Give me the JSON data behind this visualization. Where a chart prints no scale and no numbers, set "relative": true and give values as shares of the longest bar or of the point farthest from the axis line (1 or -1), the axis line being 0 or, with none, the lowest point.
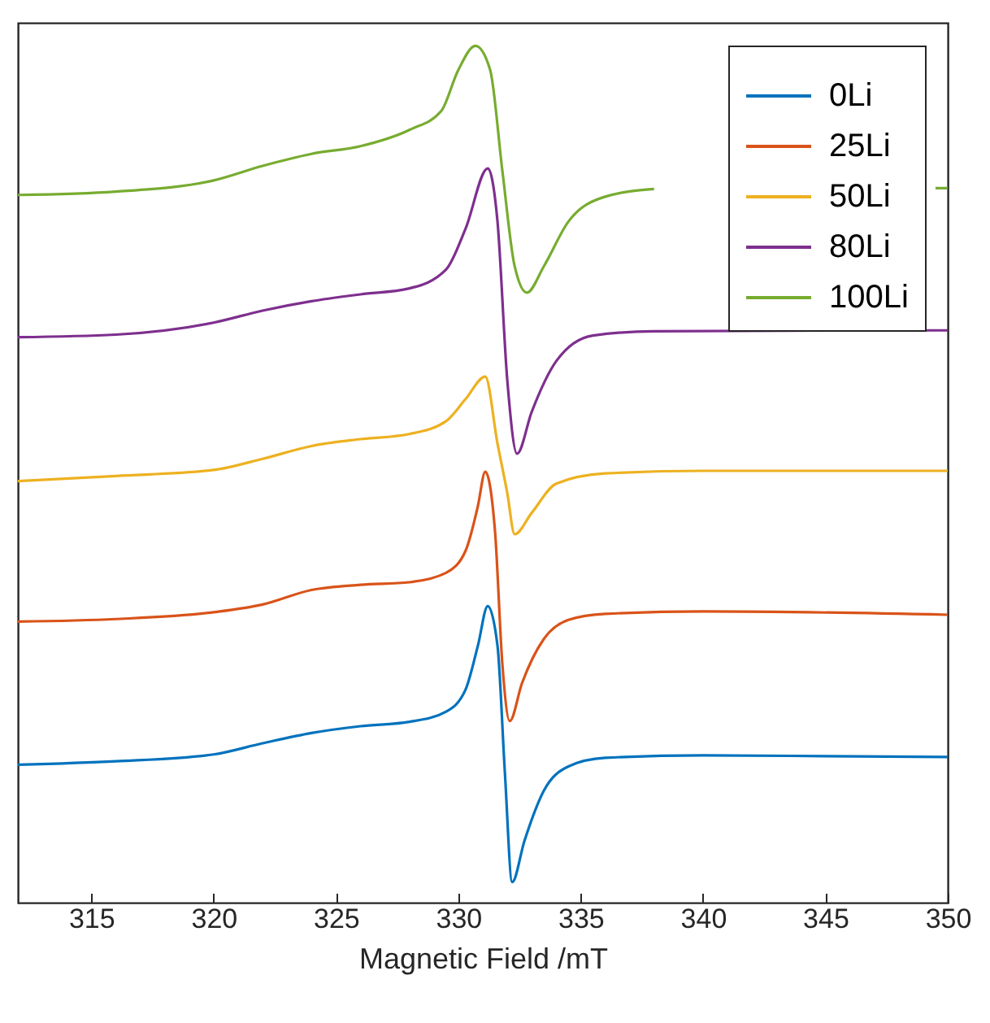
{
  "chart_data": {
    "type": "line",
    "xlabel": "Magnetic Field /mT",
    "relative": true,
    "xlim": [
      312,
      350
    ],
    "xticks": [
      315,
      320,
      325,
      330,
      335,
      340,
      345,
      350
    ],
    "legend": "top right",
    "grid": false,
    "series": [
      {
        "name": "0Li",
        "color": "#0072bd",
        "x": [
          312,
          316,
          320,
          322,
          324,
          326,
          328,
          329.5,
          330.3,
          330.8,
          331.2,
          331.6,
          331.9,
          332.2,
          332.7,
          333.5,
          334.5,
          336,
          340,
          345,
          350
        ],
        "values": [
          0.161,
          0.165,
          0.173,
          0.186,
          0.198,
          0.206,
          0.211,
          0.223,
          0.249,
          0.3,
          0.346,
          0.3,
          0.153,
          0.024,
          0.072,
          0.131,
          0.159,
          0.169,
          0.172,
          0.171,
          0.17
        ]
      },
      {
        "name": "25Li",
        "color": "#d95319",
        "x": [
          312,
          316,
          320,
          322,
          324,
          326,
          328,
          329.5,
          330.3,
          330.8,
          331.1,
          331.5,
          331.8,
          332.1,
          332.6,
          333.5,
          334.5,
          336,
          340,
          350
        ],
        "values": [
          0.328,
          0.331,
          0.339,
          0.348,
          0.365,
          0.371,
          0.374,
          0.385,
          0.411,
          0.463,
          0.503,
          0.433,
          0.278,
          0.212,
          0.256,
          0.308,
          0.33,
          0.337,
          0.34,
          0.336
        ]
      },
      {
        "name": "50Li",
        "color": "#edb120",
        "x": [
          312,
          316,
          320,
          322,
          324,
          326,
          328,
          329.5,
          330.3,
          331.1,
          331.6,
          332,
          332.3,
          333,
          334,
          336,
          340,
          350
        ],
        "values": [
          0.492,
          0.498,
          0.505,
          0.518,
          0.533,
          0.541,
          0.547,
          0.562,
          0.588,
          0.614,
          0.536,
          0.478,
          0.43,
          0.455,
          0.489,
          0.501,
          0.504,
          0.504
        ]
      },
      {
        "name": "80Li",
        "color": "#7e2f8e",
        "x": [
          312,
          316,
          320,
          322,
          324,
          326,
          328,
          329.5,
          330.3,
          331.2,
          331.6,
          332,
          332.4,
          333,
          334,
          335.5,
          338,
          350
        ],
        "values": [
          0.66,
          0.663,
          0.677,
          0.691,
          0.702,
          0.71,
          0.717,
          0.739,
          0.787,
          0.857,
          0.795,
          0.61,
          0.524,
          0.573,
          0.632,
          0.662,
          0.667,
          0.668
        ]
      },
      {
        "name": "100Li",
        "color": "#77ac30",
        "x": [
          312,
          316,
          320,
          322,
          324,
          326,
          328,
          329.3,
          330,
          330.7,
          331.3,
          331.8,
          332.3,
          332.8,
          333.5,
          334.5,
          336,
          338,
          344,
          349.5,
          350
        ],
        "values": [
          0.826,
          0.83,
          0.843,
          0.86,
          0.874,
          0.883,
          0.902,
          0.924,
          0.972,
          1.0,
          0.972,
          0.854,
          0.743,
          0.712,
          0.743,
          0.795,
          0.824,
          0.833,
          null,
          0.834,
          0.834
        ]
      }
    ]
  }
}
